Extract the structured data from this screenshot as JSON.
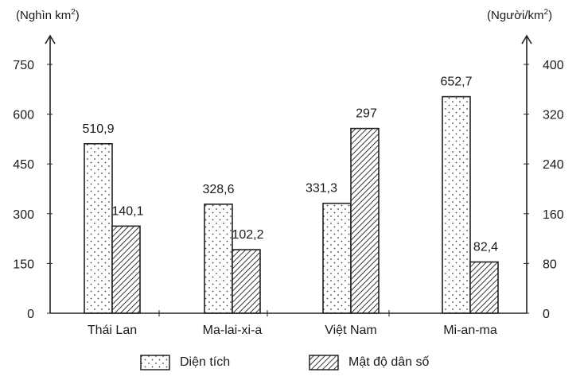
{
  "chart_data": {
    "type": "bar",
    "title": "",
    "categories": [
      "Thái Lan",
      "Ma-lai-xi-a",
      "Việt Nam",
      "Mi-an-ma"
    ],
    "series": [
      {
        "name": "Diện tích",
        "axis": "left",
        "pattern": "dotted",
        "values": [
          510.9,
          328.6,
          331.3,
          652.7
        ],
        "labels": [
          "510,9",
          "328,6",
          "331,3",
          "652,7"
        ]
      },
      {
        "name": "Mật độ dân số",
        "axis": "right",
        "pattern": "hatched",
        "values": [
          140.1,
          102.2,
          297,
          82.4
        ],
        "labels": [
          "140,1",
          "102,2",
          "297",
          "82,4"
        ]
      }
    ],
    "left_axis": {
      "label": "(Nghìn km2)",
      "label_main": "(Nghìn km",
      "label_sup": "2",
      "label_end": ")",
      "ylim": [
        0,
        750
      ],
      "ticks": [
        0,
        150,
        300,
        450,
        600,
        750
      ]
    },
    "right_axis": {
      "label": "(Người/km2)",
      "label_main": "(Người/km",
      "label_sup": "2",
      "label_end": ")",
      "ylim": [
        0,
        400
      ],
      "ticks": [
        0,
        80,
        160,
        240,
        320,
        400
      ]
    },
    "xlabel": "",
    "grid": false,
    "legend_position": "bottom"
  },
  "legend": {
    "area": "Diện tích",
    "density": "Mật độ dân số"
  }
}
